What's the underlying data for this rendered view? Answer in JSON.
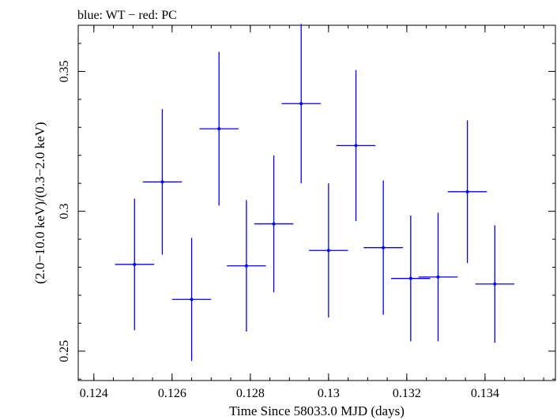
{
  "header": {
    "title": "blue: WT − red: PC"
  },
  "chart_data": {
    "type": "scatter",
    "title": "blue: WT − red: PC",
    "xlabel": "Time Since 58033.0 MJD (days)",
    "ylabel": "(2.0−10.0 keV)/(0.3−2.0 keV)",
    "xlim": [
      0.1236,
      0.1358
    ],
    "ylim": [
      0.2395,
      0.3665
    ],
    "x_ticks": [
      0.124,
      0.126,
      0.128,
      0.13,
      0.132,
      0.134
    ],
    "x_tick_labels": [
      "0.124",
      "0.126",
      "0.128",
      "0.13",
      "0.132",
      "0.134"
    ],
    "y_ticks": [
      0.25,
      0.3,
      0.35
    ],
    "y_tick_labels": [
      "0.25",
      "0.3",
      "0.35"
    ],
    "grid": false,
    "series": [
      {
        "color": "#0000ff",
        "points": [
          {
            "x": 0.12504,
            "xerr": 0.0005,
            "y": 0.281,
            "yerr": 0.0235
          },
          {
            "x": 0.12575,
            "xerr": 0.0005,
            "y": 0.3105,
            "yerr": 0.026
          },
          {
            "x": 0.1265,
            "xerr": 0.0005,
            "y": 0.2685,
            "yerr": 0.022
          },
          {
            "x": 0.1272,
            "xerr": 0.0005,
            "y": 0.3295,
            "yerr": 0.0275
          },
          {
            "x": 0.1279,
            "xerr": 0.0005,
            "y": 0.2805,
            "yerr": 0.0235
          },
          {
            "x": 0.1286,
            "xerr": 0.0005,
            "y": 0.2955,
            "yerr": 0.0245
          },
          {
            "x": 0.1293,
            "xerr": 0.0005,
            "y": 0.3385,
            "yerr": 0.0285
          },
          {
            "x": 0.13,
            "xerr": 0.0005,
            "y": 0.286,
            "yerr": 0.024
          },
          {
            "x": 0.1307,
            "xerr": 0.0005,
            "y": 0.3235,
            "yerr": 0.027
          },
          {
            "x": 0.1314,
            "xerr": 0.0005,
            "y": 0.287,
            "yerr": 0.024
          },
          {
            "x": 0.1321,
            "xerr": 0.0005,
            "y": 0.276,
            "yerr": 0.0225
          },
          {
            "x": 0.1328,
            "xerr": 0.0005,
            "y": 0.2765,
            "yerr": 0.023
          },
          {
            "x": 0.13355,
            "xerr": 0.0005,
            "y": 0.307,
            "yerr": 0.0255
          },
          {
            "x": 0.13425,
            "xerr": 0.0005,
            "y": 0.274,
            "yerr": 0.021
          }
        ]
      }
    ]
  }
}
